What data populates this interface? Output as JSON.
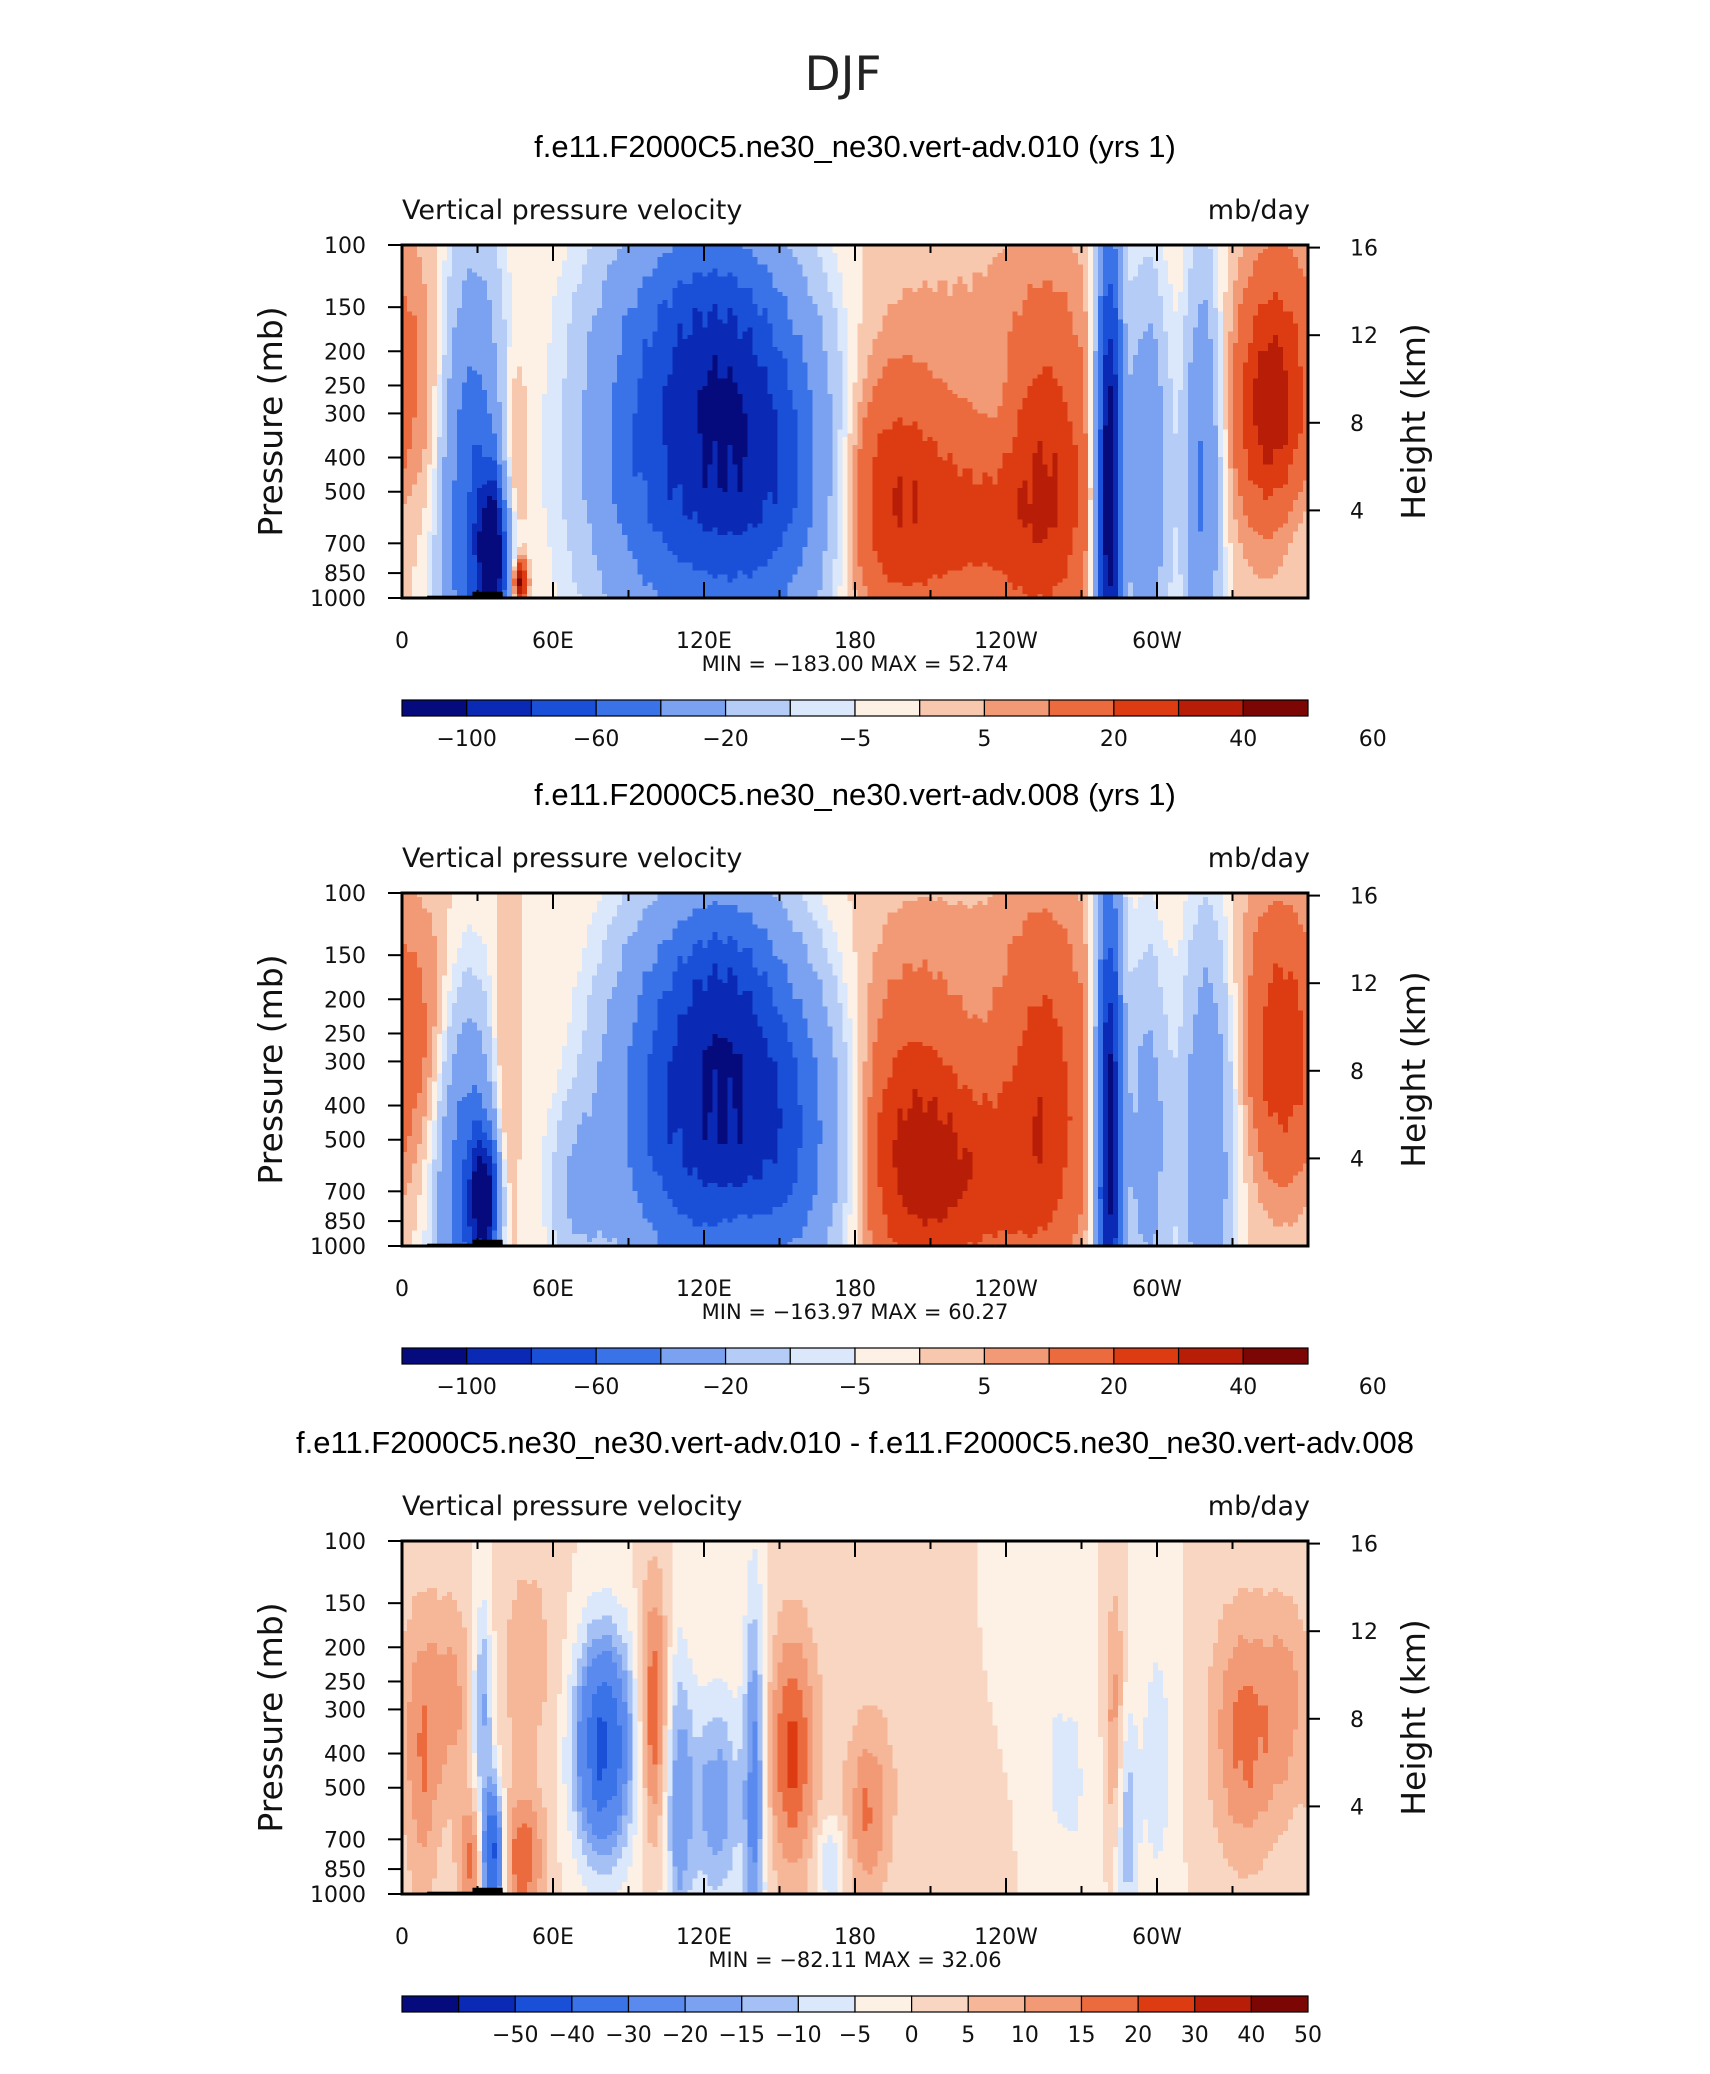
{
  "figure_title": "DJF",
  "colors": {
    "scale11": [
      "#050a7d",
      "#0a2ab5",
      "#1a50d8",
      "#3a72e8",
      "#7aa2f0",
      "#b4ccf6",
      "#dbe8fb",
      "#fdf0e4",
      "#f8c8ae",
      "#f29a76",
      "#eb6a3e",
      "#dd3b12",
      "#b81d07",
      "#7c0604"
    ],
    "scale15": [
      "#050a7d",
      "#0a2ab5",
      "#1a50d8",
      "#3a72e8",
      "#5a8aee",
      "#7aa2f0",
      "#a4c0f4",
      "#dbe8fb",
      "#fdf0e4",
      "#f8d6c2",
      "#f5b798",
      "#f29a76",
      "#eb6a3e",
      "#dd3b12",
      "#b81d07",
      "#7c0604"
    ],
    "orography": "#000000"
  },
  "chart_data": [
    {
      "type": "heatmap",
      "title": "f.e11.F2000C5.ne30_ne30.vert-adv.010 (yrs 1)",
      "subtitle_left": "Vertical pressure velocity",
      "subtitle_right": "mb/day",
      "ylabel": "Pressure (mb)",
      "ylabel_right": "Height (km)",
      "longitude_range_deg_east": [
        0,
        360
      ],
      "pressure_range_mb": [
        1000,
        100
      ],
      "x_ticks": [
        {
          "lon": 0,
          "label": "0"
        },
        {
          "lon": 60,
          "label": "60E"
        },
        {
          "lon": 120,
          "label": "120E"
        },
        {
          "lon": 180,
          "label": "180"
        },
        {
          "lon": 240,
          "label": "120W"
        },
        {
          "lon": 300,
          "label": "60W"
        }
      ],
      "y_ticks": [
        {
          "p": 100,
          "label": "100"
        },
        {
          "p": 150,
          "label": "150"
        },
        {
          "p": 200,
          "label": "200"
        },
        {
          "p": 250,
          "label": "250"
        },
        {
          "p": 300,
          "label": "300"
        },
        {
          "p": 400,
          "label": "400"
        },
        {
          "p": 500,
          "label": "500"
        },
        {
          "p": 700,
          "label": "700"
        },
        {
          "p": 850,
          "label": "850"
        },
        {
          "p": 1000,
          "label": "1000"
        }
      ],
      "y_right_ticks": [
        {
          "km": 4,
          "label": "4"
        },
        {
          "km": 8,
          "label": "8"
        },
        {
          "km": 12,
          "label": "12"
        },
        {
          "km": 16,
          "label": "16"
        }
      ],
      "stats_text": "MIN = −183.00   MAX =   52.74",
      "min": -183.0,
      "max": 52.74,
      "colorbar_levels": [
        -100,
        -80,
        -60,
        -40,
        -20,
        -10,
        -5,
        0,
        5,
        10,
        20,
        30,
        40,
        50,
        60
      ],
      "colorbar_labels": [
        "−100",
        "−60",
        "−20",
        "−5",
        "5",
        "20",
        "40",
        "60"
      ],
      "features": [
        {
          "lon": 28,
          "p": 600,
          "lw": 9,
          "pw": 1.1,
          "a": -65
        },
        {
          "lon": 36,
          "p": 750,
          "lw": 4,
          "pw": 0.35,
          "a": -110
        },
        {
          "lon": 44,
          "p": 420,
          "lw": 4,
          "pw": 0.5,
          "a": 18
        },
        {
          "lon": 47,
          "p": 900,
          "lw": 2,
          "pw": 0.1,
          "a": 50
        },
        {
          "lon": 12,
          "p": 300,
          "lw": 7,
          "pw": 0.7,
          "a": 10
        },
        {
          "lon": 100,
          "p": 380,
          "lw": 20,
          "pw": 0.9,
          "a": -55
        },
        {
          "lon": 128,
          "p": 330,
          "lw": 18,
          "pw": 0.85,
          "a": -70
        },
        {
          "lon": 152,
          "p": 450,
          "lw": 18,
          "pw": 0.75,
          "a": -50
        },
        {
          "lon": 122,
          "p": 150,
          "lw": 24,
          "pw": 0.45,
          "a": -18
        },
        {
          "lon": 190,
          "p": 500,
          "lw": 16,
          "pw": 0.6,
          "a": 25
        },
        {
          "lon": 225,
          "p": 620,
          "lw": 25,
          "pw": 0.5,
          "a": 22
        },
        {
          "lon": 257,
          "p": 450,
          "lw": 12,
          "pw": 0.8,
          "a": 25
        },
        {
          "lon": 226,
          "p": 150,
          "lw": 35,
          "pw": 0.6,
          "a": 5
        },
        {
          "lon": 236,
          "p": 300,
          "lw": 5,
          "pw": 0.3,
          "a": -4
        },
        {
          "lon": 281,
          "p": 500,
          "lw": 3.5,
          "pw": 1.2,
          "a": -130
        },
        {
          "lon": 296,
          "p": 450,
          "lw": 6,
          "pw": 0.9,
          "a": -40
        },
        {
          "lon": 318,
          "p": 480,
          "lw": 5,
          "pw": 1.0,
          "a": -45
        },
        {
          "lon": 345,
          "p": 300,
          "lw": 10,
          "pw": 0.6,
          "a": 38
        },
        {
          "lon": 355,
          "p": 150,
          "lw": 12,
          "pw": 0.6,
          "a": 6
        },
        {
          "lon": 350,
          "p": 600,
          "lw": 10,
          "pw": 0.3,
          "a": -6
        }
      ],
      "orography": [
        {
          "lon0": 10,
          "lon1": 40,
          "p": 985
        },
        {
          "lon0": 28,
          "lon1": 40,
          "p": 960
        },
        {
          "lon0": 100,
          "lon1": 130,
          "p": 993
        },
        {
          "lon0": 162,
          "lon1": 182,
          "p": 994
        },
        {
          "lon0": 283,
          "lon1": 312,
          "p": 993
        }
      ]
    },
    {
      "type": "heatmap",
      "title": "f.e11.F2000C5.ne30_ne30.vert-adv.008 (yrs 1)",
      "subtitle_left": "Vertical pressure velocity",
      "subtitle_right": "mb/day",
      "ylabel": "Pressure (mb)",
      "ylabel_right": "Height (km)",
      "longitude_range_deg_east": [
        0,
        360
      ],
      "pressure_range_mb": [
        1000,
        100
      ],
      "x_ticks": [
        {
          "lon": 0,
          "label": "0"
        },
        {
          "lon": 60,
          "label": "60E"
        },
        {
          "lon": 120,
          "label": "120E"
        },
        {
          "lon": 180,
          "label": "180"
        },
        {
          "lon": 240,
          "label": "120W"
        },
        {
          "lon": 300,
          "label": "60W"
        }
      ],
      "y_ticks": [
        {
          "p": 100,
          "label": "100"
        },
        {
          "p": 150,
          "label": "150"
        },
        {
          "p": 200,
          "label": "200"
        },
        {
          "p": 250,
          "label": "250"
        },
        {
          "p": 300,
          "label": "300"
        },
        {
          "p": 400,
          "label": "400"
        },
        {
          "p": 500,
          "label": "500"
        },
        {
          "p": 700,
          "label": "700"
        },
        {
          "p": 850,
          "label": "850"
        },
        {
          "p": 1000,
          "label": "1000"
        }
      ],
      "y_right_ticks": [
        {
          "km": 4,
          "label": "4"
        },
        {
          "km": 8,
          "label": "8"
        },
        {
          "km": 12,
          "label": "12"
        },
        {
          "km": 16,
          "label": "16"
        }
      ],
      "stats_text": "MIN = −163.97   MAX =   60.27",
      "min": -163.97,
      "max": 60.27,
      "colorbar_levels": [
        -100,
        -80,
        -60,
        -40,
        -20,
        -10,
        -5,
        0,
        5,
        10,
        20,
        30,
        40,
        50,
        60
      ],
      "colorbar_labels": [
        "−100",
        "−60",
        "−20",
        "−5",
        "5",
        "20",
        "40",
        "60"
      ],
      "features": [
        {
          "lon": 26,
          "p": 700,
          "lw": 9,
          "pw": 0.8,
          "a": -60
        },
        {
          "lon": 33,
          "p": 740,
          "lw": 4,
          "pw": 0.3,
          "a": -100
        },
        {
          "lon": 40,
          "p": 600,
          "lw": 4,
          "pw": 0.8,
          "a": 20
        },
        {
          "lon": 12,
          "p": 300,
          "lw": 7,
          "pw": 0.7,
          "a": 12
        },
        {
          "lon": 70,
          "p": 700,
          "lw": 8,
          "pw": 0.4,
          "a": -20
        },
        {
          "lon": 105,
          "p": 420,
          "lw": 18,
          "pw": 0.8,
          "a": -60
        },
        {
          "lon": 130,
          "p": 360,
          "lw": 16,
          "pw": 0.85,
          "a": -70
        },
        {
          "lon": 155,
          "p": 480,
          "lw": 16,
          "pw": 0.7,
          "a": -55
        },
        {
          "lon": 125,
          "p": 170,
          "lw": 20,
          "pw": 0.4,
          "a": -20
        },
        {
          "lon": 135,
          "p": 900,
          "lw": 8,
          "pw": 0.15,
          "a": 8
        },
        {
          "lon": 200,
          "p": 500,
          "lw": 16,
          "pw": 0.7,
          "a": 25
        },
        {
          "lon": 225,
          "p": 650,
          "lw": 22,
          "pw": 0.5,
          "a": 24
        },
        {
          "lon": 256,
          "p": 380,
          "lw": 12,
          "pw": 0.8,
          "a": 24
        },
        {
          "lon": 226,
          "p": 150,
          "lw": 35,
          "pw": 0.6,
          "a": 5
        },
        {
          "lon": 281,
          "p": 500,
          "lw": 3.5,
          "pw": 1.2,
          "a": -120
        },
        {
          "lon": 296,
          "p": 500,
          "lw": 6,
          "pw": 0.9,
          "a": -30
        },
        {
          "lon": 320,
          "p": 500,
          "lw": 7,
          "pw": 1.0,
          "a": -40
        },
        {
          "lon": 350,
          "p": 300,
          "lw": 10,
          "pw": 0.6,
          "a": 26
        },
        {
          "lon": 345,
          "p": 150,
          "lw": 14,
          "pw": 0.6,
          "a": 6
        }
      ],
      "orography": [
        {
          "lon0": 10,
          "lon1": 40,
          "p": 985
        },
        {
          "lon0": 28,
          "lon1": 40,
          "p": 960
        },
        {
          "lon0": 100,
          "lon1": 105,
          "p": 993
        },
        {
          "lon0": 112,
          "lon1": 120,
          "p": 993
        },
        {
          "lon0": 283,
          "lon1": 312,
          "p": 993
        }
      ]
    },
    {
      "type": "heatmap",
      "title": "f.e11.F2000C5.ne30_ne30.vert-adv.010 - f.e11.F2000C5.ne30_ne30.vert-adv.008",
      "subtitle_left": "Vertical pressure velocity",
      "subtitle_right": "mb/day",
      "ylabel": "Pressure (mb)",
      "ylabel_right": "Height (km)",
      "longitude_range_deg_east": [
        0,
        360
      ],
      "pressure_range_mb": [
        1000,
        100
      ],
      "x_ticks": [
        {
          "lon": 0,
          "label": "0"
        },
        {
          "lon": 60,
          "label": "60E"
        },
        {
          "lon": 120,
          "label": "120E"
        },
        {
          "lon": 180,
          "label": "180"
        },
        {
          "lon": 240,
          "label": "120W"
        },
        {
          "lon": 300,
          "label": "60W"
        }
      ],
      "y_ticks": [
        {
          "p": 100,
          "label": "100"
        },
        {
          "p": 150,
          "label": "150"
        },
        {
          "p": 200,
          "label": "200"
        },
        {
          "p": 250,
          "label": "250"
        },
        {
          "p": 300,
          "label": "300"
        },
        {
          "p": 400,
          "label": "400"
        },
        {
          "p": 500,
          "label": "500"
        },
        {
          "p": 700,
          "label": "700"
        },
        {
          "p": 850,
          "label": "850"
        },
        {
          "p": 1000,
          "label": "1000"
        }
      ],
      "y_right_ticks": [
        {
          "km": 4,
          "label": "4"
        },
        {
          "km": 8,
          "label": "8"
        },
        {
          "km": 12,
          "label": "12"
        },
        {
          "km": 16,
          "label": "16"
        }
      ],
      "stats_text": "MIN = −82.11   MAX =   32.06",
      "min": -82.11,
      "max": 32.06,
      "colorbar_levels": [
        -60,
        -50,
        -40,
        -30,
        -20,
        -15,
        -10,
        -5,
        0,
        5,
        10,
        15,
        20,
        30,
        40,
        50,
        60
      ],
      "colorbar_labels": [
        "−50",
        "−40",
        "−30",
        "−20",
        "−15",
        "−10",
        "−5",
        "0",
        "5",
        "10",
        "15",
        "20",
        "30",
        "40",
        "50"
      ],
      "features": [
        {
          "lon": 8,
          "p": 400,
          "lw": 5,
          "pw": 0.7,
          "a": 15
        },
        {
          "lon": 20,
          "p": 280,
          "lw": 6,
          "pw": 0.5,
          "a": 12
        },
        {
          "lon": 32,
          "p": 300,
          "lw": 3,
          "pw": 0.5,
          "a": -20
        },
        {
          "lon": 36,
          "p": 780,
          "lw": 3,
          "pw": 0.3,
          "a": -50
        },
        {
          "lon": 28,
          "p": 800,
          "lw": 4,
          "pw": 0.3,
          "a": 18
        },
        {
          "lon": 48,
          "p": 800,
          "lw": 6,
          "pw": 0.3,
          "a": 20
        },
        {
          "lon": 80,
          "p": 380,
          "lw": 8,
          "pw": 0.5,
          "a": -45
        },
        {
          "lon": 100,
          "p": 300,
          "lw": 4,
          "pw": 0.6,
          "a": 22
        },
        {
          "lon": 110,
          "p": 550,
          "lw": 4,
          "pw": 0.7,
          "a": -20
        },
        {
          "lon": 125,
          "p": 550,
          "lw": 7,
          "pw": 0.5,
          "a": -20
        },
        {
          "lon": 140,
          "p": 500,
          "lw": 3,
          "pw": 0.9,
          "a": -25
        },
        {
          "lon": 155,
          "p": 400,
          "lw": 7,
          "pw": 0.6,
          "a": 22
        },
        {
          "lon": 185,
          "p": 600,
          "lw": 6,
          "pw": 0.4,
          "a": 15
        },
        {
          "lon": 170,
          "p": 820,
          "lw": 4,
          "pw": 0.2,
          "a": -12
        },
        {
          "lon": 50,
          "p": 220,
          "lw": 10,
          "pw": 0.6,
          "a": 8
        },
        {
          "lon": 210,
          "p": 300,
          "lw": 25,
          "pw": 0.8,
          "a": 4
        },
        {
          "lon": 245,
          "p": 200,
          "lw": 15,
          "pw": 0.6,
          "a": -4
        },
        {
          "lon": 283,
          "p": 320,
          "lw": 3,
          "pw": 0.6,
          "a": 14
        },
        {
          "lon": 288,
          "p": 650,
          "lw": 3,
          "pw": 0.6,
          "a": -14
        },
        {
          "lon": 300,
          "p": 420,
          "lw": 5,
          "pw": 0.7,
          "a": -8
        },
        {
          "lon": 335,
          "p": 350,
          "lw": 10,
          "pw": 0.6,
          "a": 18
        },
        {
          "lon": 352,
          "p": 280,
          "lw": 6,
          "pw": 0.5,
          "a": 10
        },
        {
          "lon": 265,
          "p": 500,
          "lw": 10,
          "pw": 0.6,
          "a": -6
        }
      ],
      "orography": [
        {
          "lon0": 10,
          "lon1": 40,
          "p": 985
        },
        {
          "lon0": 28,
          "lon1": 40,
          "p": 960
        },
        {
          "lon0": 100,
          "lon1": 130,
          "p": 993
        },
        {
          "lon0": 283,
          "lon1": 312,
          "p": 993
        }
      ]
    }
  ]
}
